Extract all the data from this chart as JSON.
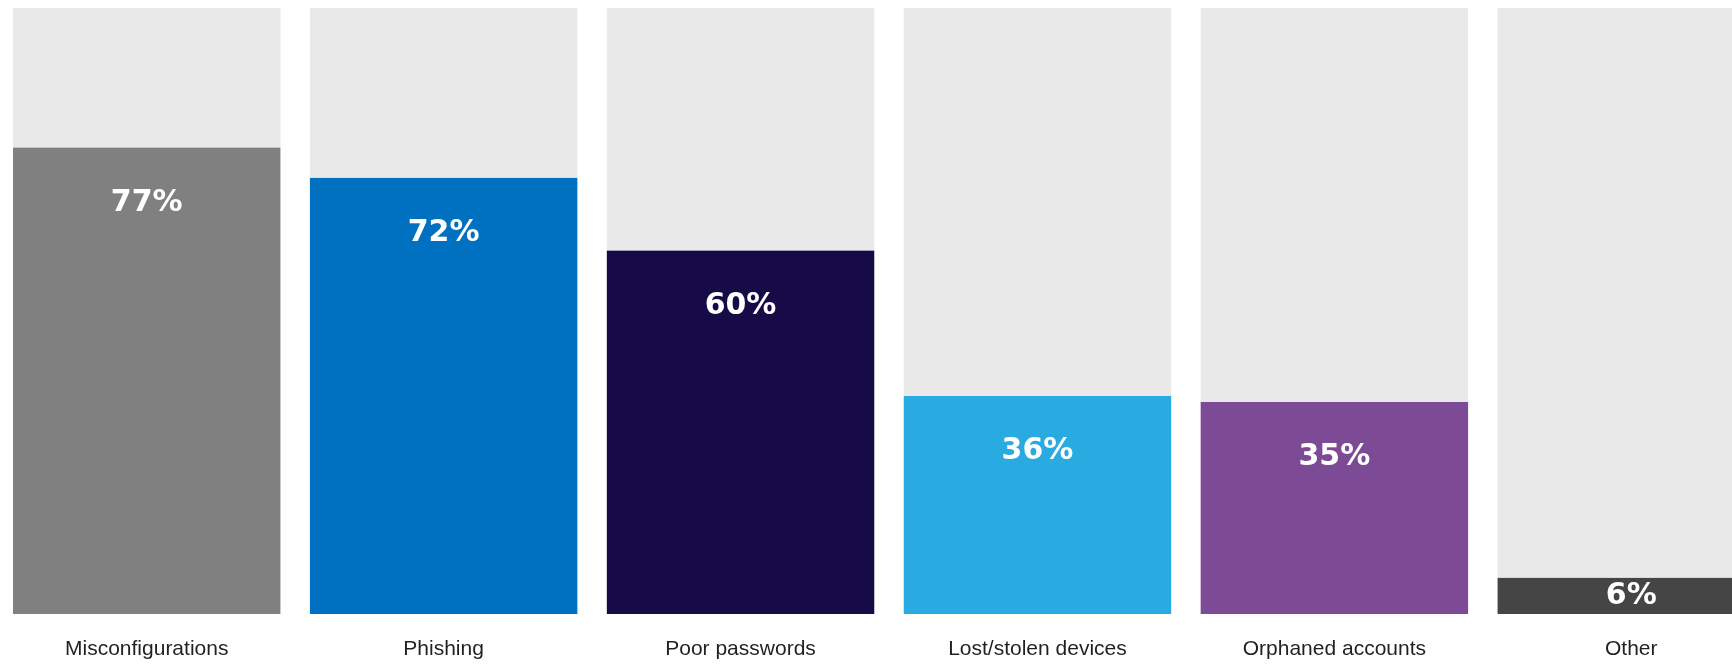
{
  "chart_data": {
    "type": "bar",
    "stacked": true,
    "categories": [
      "Misconfigurations",
      "Phishing",
      "Poor passwords",
      "Lost/stolen devices",
      "Orphaned accounts",
      "Other"
    ],
    "series": [
      {
        "colors": [
          "#808080",
          "#0070c0",
          "#160a47",
          "#29abe2",
          "#7d4b96",
          "#454545"
        ],
        "values": [
          77,
          72,
          60,
          36,
          35,
          6
        ],
        "value_labels": [
          "77%",
          "72%",
          "60%",
          "36%",
          "35%",
          "6%"
        ]
      },
      {
        "color": "#e9e9e9",
        "values": [
          23,
          28,
          40,
          64,
          65,
          94
        ]
      }
    ],
    "ylim": [
      0,
      100
    ],
    "tick_labels": "x"
  }
}
